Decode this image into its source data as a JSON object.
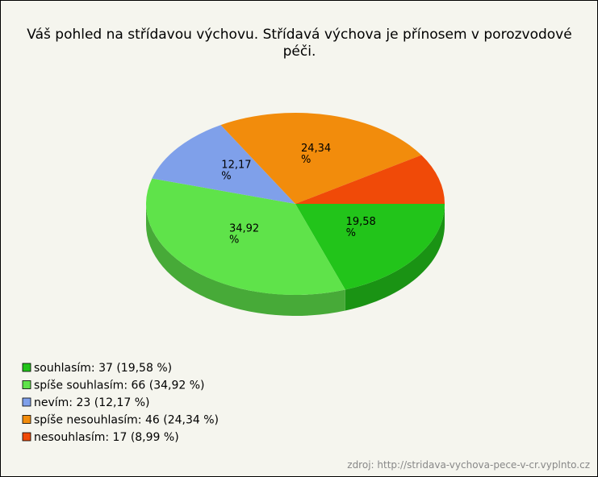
{
  "chart_data": {
    "type": "pie",
    "title": "Váš pohled na střídavou výchovu. Střídavá výchova je přínosem v porozvodové péči.",
    "categories": [
      "souhlasím: 37 (19,58 %)",
      "spíše souhlasím: 66 (34,92 %)",
      "nevím: 23 (12,17 %)",
      "spíše nesouhlasím: 46 (24,34 %)",
      "nesouhlasím: 17 (8,99 %)"
    ],
    "values": [
      19.58,
      34.92,
      12.17,
      24.34,
      8.99
    ],
    "value_labels": [
      "19,58 %",
      "34,92 %",
      "12,17 %",
      "24,34 %",
      null
    ],
    "colors": [
      "#22c41a",
      "#5fe34a",
      "#7fa0ea",
      "#f28c0c",
      "#f04a08"
    ],
    "source": "zdroj: http://stridava-vychova-pece-v-cr.vyplnto.cz"
  }
}
